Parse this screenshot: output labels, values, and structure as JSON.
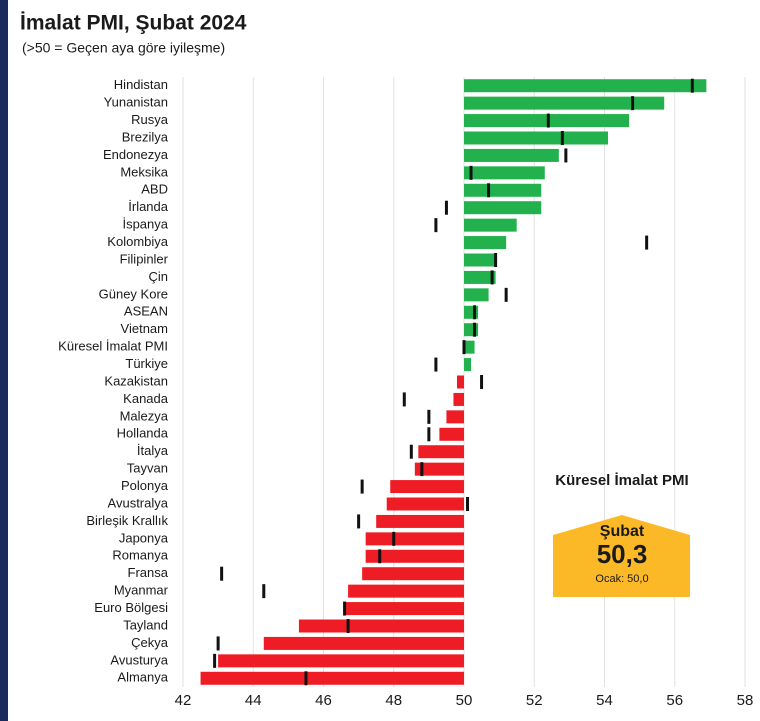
{
  "chart_data": {
    "type": "bar",
    "title": "İmalat PMI, Şubat 2024",
    "subtitle": "(>50 = Geçen aya göre iyileşme)",
    "categories": [
      "Hindistan",
      "Yunanistan",
      "Rusya",
      "Brezilya",
      "Endonezya",
      "Meksika",
      "ABD",
      "İrlanda",
      "İspanya",
      "Kolombiya",
      "Filipinler",
      "Çin",
      "Güney Kore",
      "ASEAN",
      "Vietnam",
      "Küresel İmalat PMI",
      "Türkiye",
      "Kazakistan",
      "Kanada",
      "Malezya",
      "Hollanda",
      "İtalya",
      "Tayvan",
      "Polonya",
      "Avustralya",
      "Birleşik Krallık",
      "Japonya",
      "Romanya",
      "Fransa",
      "Myanmar",
      "Euro Bölgesi",
      "Tayland",
      "Çekya",
      "Avusturya",
      "Almanya"
    ],
    "values": [
      56.9,
      55.7,
      54.7,
      54.1,
      52.7,
      52.3,
      52.2,
      52.2,
      51.5,
      51.2,
      50.9,
      50.9,
      50.7,
      50.4,
      50.4,
      50.3,
      50.2,
      49.8,
      49.7,
      49.5,
      49.3,
      48.7,
      48.6,
      47.9,
      47.8,
      47.5,
      47.2,
      47.2,
      47.1,
      46.7,
      46.6,
      45.3,
      44.3,
      43.0,
      42.5
    ],
    "previous_values": [
      56.5,
      54.8,
      52.4,
      52.8,
      52.9,
      50.2,
      50.7,
      49.5,
      49.2,
      55.2,
      50.9,
      50.8,
      51.2,
      50.3,
      50.3,
      50.0,
      49.2,
      50.5,
      48.3,
      49.0,
      49.0,
      48.5,
      48.8,
      47.1,
      50.1,
      47.0,
      48.0,
      47.6,
      43.1,
      44.3,
      46.6,
      46.7,
      43.0,
      42.9,
      45.5
    ],
    "base": 50,
    "color_above": "#22b14c",
    "color_below": "#ee1c25",
    "marker_color": "#111111",
    "xlim": [
      42,
      58
    ],
    "xticks": [
      42,
      44,
      46,
      48,
      50,
      52,
      54,
      56,
      58
    ],
    "grid": true,
    "annotation": {
      "title": "Küresel İmalat PMI",
      "month": "Şubat",
      "value": "50,3",
      "previous": "Ocak: 50,0",
      "color": "#fbb928"
    }
  }
}
